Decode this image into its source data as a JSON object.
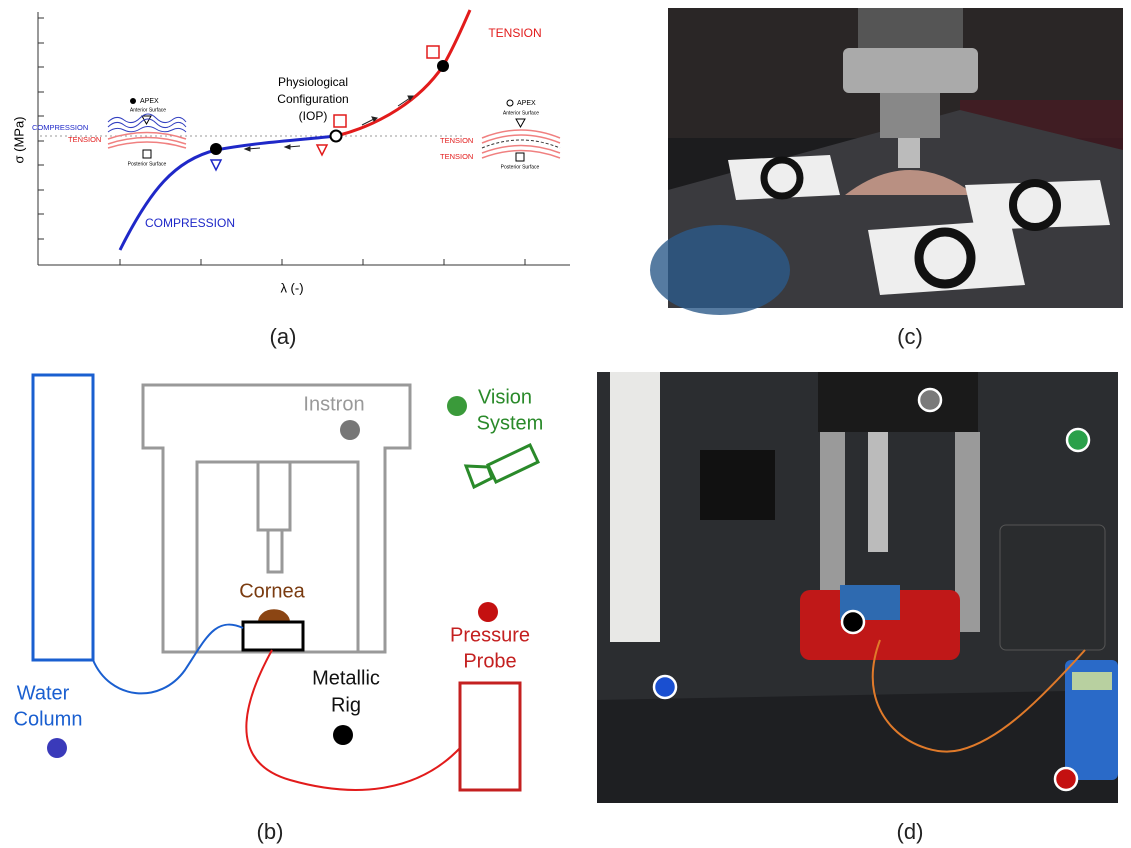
{
  "panel_a": {
    "label": "(a)",
    "y_axis": "σ (MPa)",
    "x_axis": "λ (-)",
    "tension": "TENSION",
    "compression": "COMPRESSION",
    "physiological": [
      "Physiological",
      "Configuration",
      "(IOP)"
    ],
    "left_inset": {
      "apex": "APEX",
      "anterior": "Anterior Surface",
      "posterior": "Posterior Surface",
      "top": "COMPRESSION",
      "bottom": "TENSION"
    },
    "right_inset": {
      "apex": "APEX",
      "anterior": "Anterior Surface",
      "posterior": "Posterior Surface",
      "top": "TENSION",
      "bottom": "TENSION"
    }
  },
  "panel_b": {
    "label": "(b)",
    "instron": "Instron",
    "vision": [
      "Vision",
      "System"
    ],
    "cornea": "Cornea",
    "water": [
      "Water",
      "Column"
    ],
    "rig": [
      "Metallic",
      "Rig"
    ],
    "probe": [
      "Pressure",
      "Probe"
    ]
  },
  "panel_c": {
    "label": "(c)"
  },
  "panel_d": {
    "label": "(d)"
  }
}
